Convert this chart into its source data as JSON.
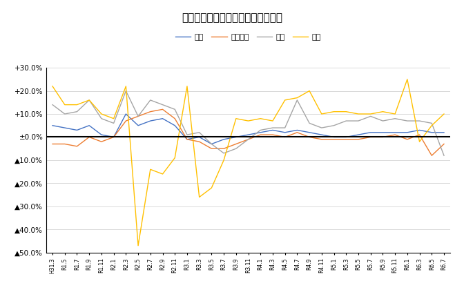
{
  "title": "米消費量・前年同月比増減率の推移",
  "legend_labels": [
    "合計",
    "家庭内食",
    "中食",
    "外食"
  ],
  "line_colors": [
    "#4472C4",
    "#ED7D31",
    "#A5A5A5",
    "#FFC000"
  ],
  "x_labels": [
    "H31.3",
    "R1.5",
    "R1.7",
    "R1.9",
    "R1.11",
    "R2.1",
    "R2.3",
    "R2.5",
    "R2.7",
    "R2.9",
    "R2.11",
    "R3.1",
    "R3.3",
    "R3.5",
    "R3.7",
    "R3.9",
    "R3.11",
    "R4.1",
    "R4.3",
    "R4.5",
    "R4.7",
    "R4.9",
    "R4.11",
    "R5.1",
    "R5.3",
    "R5.5",
    "R5.7",
    "R5.9",
    "R5.11",
    "R6.1",
    "R6.3",
    "R6.5",
    "R6.7"
  ],
  "series": {
    "合計": [
      5.0,
      4.0,
      3.0,
      5.0,
      1.0,
      0.0,
      10.0,
      5.0,
      7.0,
      8.0,
      5.0,
      -1.0,
      0.0,
      -3.0,
      -1.0,
      0.0,
      1.0,
      2.0,
      3.0,
      2.0,
      3.0,
      2.0,
      1.0,
      0.0,
      0.0,
      1.0,
      2.0,
      2.0,
      2.0,
      2.0,
      3.0,
      2.0,
      2.0
    ],
    "家庭内食": [
      -3.0,
      -3.0,
      -4.0,
      0.0,
      -2.0,
      0.0,
      7.0,
      9.0,
      11.0,
      12.0,
      8.0,
      -1.0,
      -2.0,
      -5.0,
      -5.0,
      -3.0,
      -1.0,
      1.0,
      1.0,
      0.0,
      2.0,
      0.0,
      -1.0,
      -1.0,
      -1.0,
      -1.0,
      0.0,
      0.0,
      1.0,
      -1.0,
      1.0,
      -8.0,
      -3.0
    ],
    "中食": [
      14.0,
      10.0,
      11.0,
      16.0,
      8.0,
      6.0,
      20.0,
      9.0,
      16.0,
      14.0,
      12.0,
      1.0,
      2.0,
      -3.0,
      -7.0,
      -5.0,
      -1.0,
      3.0,
      4.0,
      4.0,
      16.0,
      6.0,
      4.0,
      5.0,
      7.0,
      7.0,
      9.0,
      7.0,
      8.0,
      7.0,
      7.0,
      6.0,
      -8.0
    ],
    "外食": [
      22.0,
      14.0,
      14.0,
      16.0,
      10.0,
      8.0,
      22.0,
      -47.0,
      -14.0,
      -16.0,
      -9.0,
      22.0,
      -26.0,
      -22.0,
      -10.0,
      8.0,
      7.0,
      8.0,
      7.0,
      16.0,
      17.0,
      20.0,
      10.0,
      11.0,
      11.0,
      10.0,
      10.0,
      11.0,
      10.0,
      25.0,
      -2.0,
      5.0,
      10.0
    ]
  },
  "ylim": [
    -50.0,
    30.0
  ],
  "yticks": [
    30.0,
    20.0,
    10.0,
    0.0,
    -10.0,
    -20.0,
    -30.0,
    -40.0,
    -50.0
  ],
  "ytick_labels": [
    "+30.0%",
    "+20.0%",
    "+10.0%",
    "±0.0%",
    "▲10.0%",
    "▲20.0%",
    "▲30.0%",
    "▲40.0%",
    "▲50.0%"
  ],
  "background_color": "#FFFFFF",
  "grid_color": "#D9D9D9",
  "zero_line_color": "#000000"
}
